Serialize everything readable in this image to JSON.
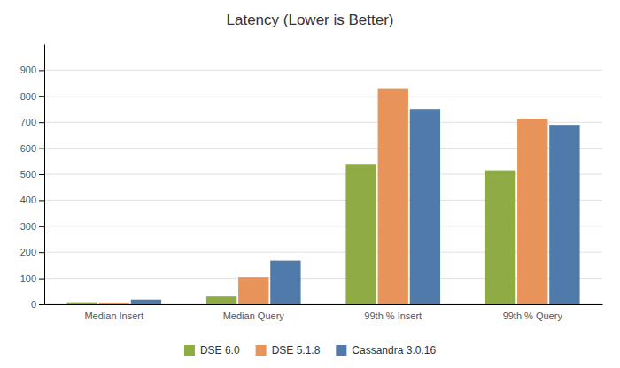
{
  "chart_data": {
    "type": "bar",
    "title": "Latency (Lower is Better)",
    "categories": [
      "Median Insert",
      "Median Query",
      "99th % Insert",
      "99th % Query"
    ],
    "series": [
      {
        "name": "DSE 6.0",
        "color": "#8fac44",
        "values": [
          8,
          30,
          540,
          515
        ]
      },
      {
        "name": "DSE 5.1.8",
        "color": "#e8935a",
        "values": [
          7,
          105,
          828,
          714
        ]
      },
      {
        "name": "Cassandra 3.0.16",
        "color": "#4f7aaa",
        "values": [
          18,
          168,
          751,
          690
        ]
      }
    ],
    "ylim": [
      0,
      1000
    ],
    "yticks": [
      0,
      100,
      200,
      300,
      400,
      500,
      600,
      700,
      800,
      900
    ],
    "grid": true,
    "legend": "bottom"
  }
}
